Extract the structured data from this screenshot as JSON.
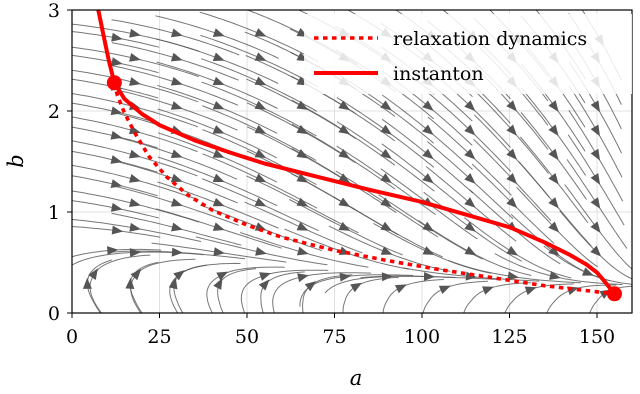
{
  "chart_data": {
    "type": "line",
    "title": "",
    "xlabel": "a",
    "ylabel": "b",
    "xlim": [
      0,
      160
    ],
    "ylim": [
      0,
      3
    ],
    "xticks": [
      0,
      25,
      50,
      75,
      100,
      125,
      150
    ],
    "yticks": [
      0,
      1,
      2,
      3
    ],
    "grid": true,
    "legend_position": "top-right",
    "background": "streamplot",
    "series": [
      {
        "name": "relaxation dynamics",
        "style": "dotted",
        "color": "#ff0000",
        "x": [
          12.1,
          13,
          15,
          18,
          22,
          27,
          33,
          40,
          50,
          60,
          75,
          90,
          105,
          120,
          135,
          145,
          155
        ],
        "y": [
          2.28,
          2.15,
          1.98,
          1.78,
          1.55,
          1.35,
          1.17,
          1.02,
          0.87,
          0.75,
          0.62,
          0.52,
          0.43,
          0.35,
          0.27,
          0.23,
          0.19
        ]
      },
      {
        "name": "instanton",
        "style": "solid",
        "color": "#ff0000",
        "x": [
          7.5,
          9,
          10.5,
          12.1,
          15,
          20,
          25,
          35,
          45,
          55,
          70,
          85,
          100,
          115,
          125,
          135,
          142,
          147,
          150,
          152,
          155
        ],
        "y": [
          3.0,
          2.75,
          2.5,
          2.28,
          2.12,
          1.97,
          1.86,
          1.71,
          1.59,
          1.48,
          1.35,
          1.22,
          1.1,
          0.95,
          0.85,
          0.7,
          0.58,
          0.48,
          0.4,
          0.32,
          0.19
        ]
      }
    ],
    "endpoints": [
      {
        "x": 12.1,
        "y": 2.28
      },
      {
        "x": 155,
        "y": 0.19
      }
    ]
  }
}
